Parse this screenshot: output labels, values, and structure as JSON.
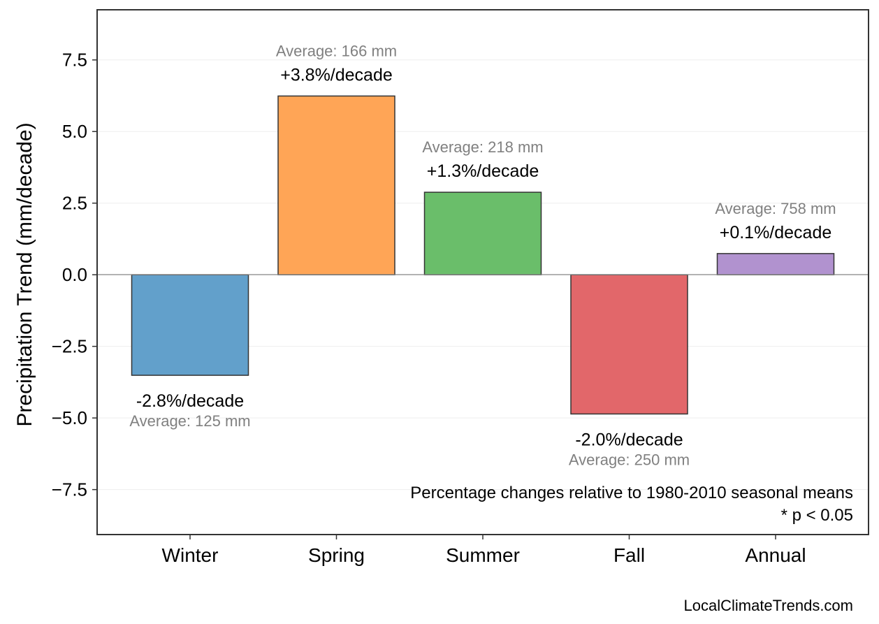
{
  "chart_data": {
    "type": "bar",
    "categories": [
      "Winter",
      "Spring",
      "Summer",
      "Fall",
      "Annual"
    ],
    "values": [
      -3.51,
      6.24,
      2.88,
      -4.86,
      0.74
    ],
    "colors": [
      "#62a0cb",
      "#ffa556",
      "#6abe6a",
      "#e2676a",
      "#b192cf"
    ],
    "pct_labels": [
      "-2.8%/decade",
      "+3.8%/decade",
      "+1.3%/decade",
      "-2.0%/decade",
      "+0.1%/decade"
    ],
    "avg_labels": [
      "Average: 125 mm",
      "Average: 166 mm",
      "Average: 218 mm",
      "Average: 250 mm",
      "Average: 758 mm"
    ],
    "ylabel": "Precipitation Trend (mm/decade)",
    "ylim": [
      -9.07,
      9.25
    ],
    "yticks": [
      -7.5,
      -5.0,
      -2.5,
      0.0,
      2.5,
      5.0,
      7.5
    ],
    "ytick_labels": [
      "−7.5",
      "−5.0",
      "−2.5",
      "0.0",
      "2.5",
      "5.0",
      "7.5"
    ],
    "grid": true,
    "note_line1": "Percentage changes relative to 1980-2010 seasonal means",
    "note_line2": "* p < 0.05",
    "watermark": "LocalClimateTrends.com"
  }
}
